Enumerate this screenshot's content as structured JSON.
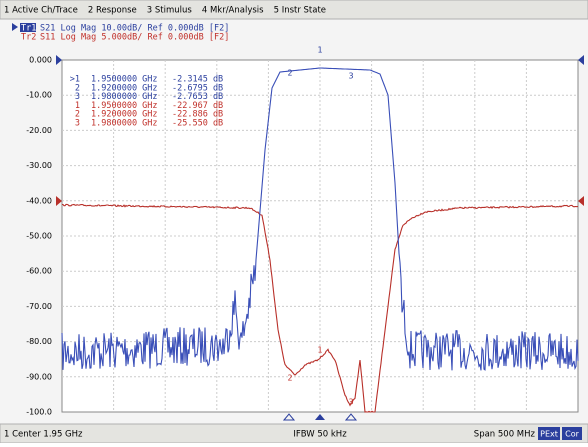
{
  "menu": [
    "1 Active Ch/Trace",
    "2 Response",
    "3 Stimulus",
    "4 Mkr/Analysis",
    "5 Instr State"
  ],
  "traces": [
    {
      "id": "Tr1",
      "text": "S21 Log Mag 10.00dB/ Ref 0.000dB [F2]"
    },
    {
      "id": "Tr2",
      "text": "S11 Log Mag 5.000dB/ Ref 0.000dB [F2]"
    }
  ],
  "yaxis": [
    "0.000",
    "-10.00",
    "-20.00",
    "-30.00",
    "-40.00",
    "-50.00",
    "-60.00",
    "-70.00",
    "-80.00",
    "-90.00",
    "-100.0"
  ],
  "markers": [
    {
      "num": ">1",
      "freq": "1.9500000 GHz",
      "value": "-2.3145 dB"
    },
    {
      "num": "2",
      "freq": "1.9200000 GHz",
      "value": "-2.6795 dB"
    },
    {
      "num": "3",
      "freq": "1.9800000 GHz",
      "value": "-2.7653 dB"
    },
    {
      "num": "1",
      "freq": "1.9500000 GHz",
      "value": "-22.967 dB"
    },
    {
      "num": "2",
      "freq": "1.9200000 GHz",
      "value": "-22.886 dB"
    },
    {
      "num": "3",
      "freq": "1.9800000 GHz",
      "value": "-25.550 dB"
    }
  ],
  "marker_tags": [
    "1",
    "2",
    "3"
  ],
  "footer": {
    "center": "1 Center 1.95 GHz",
    "ifbw": "IFBW 50 kHz",
    "span": "Span 500 MHz",
    "pext": "PExt",
    "cor": "Cor"
  }
}
